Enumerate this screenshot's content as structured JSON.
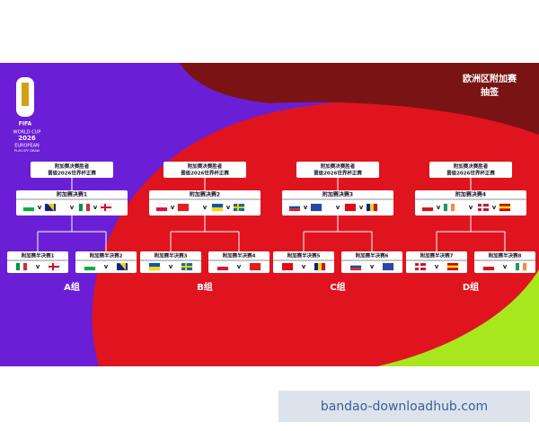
{
  "title": [
    "欧洲区附加赛",
    "抽签"
  ],
  "logo": {
    "brand": "FIFA",
    "lines": [
      "WORLD CUP",
      "2026",
      "EUROPEAN",
      "PLAY-OFF DRAW"
    ]
  },
  "versus": "v",
  "groups": [
    {
      "winner": [
        "附加赛决赛胜者",
        "晋级2026世界杯正赛"
      ],
      "final": "附加赛决赛1",
      "semis": [
        "附加赛半决赛1",
        "附加赛半决赛2"
      ],
      "label": "A组"
    },
    {
      "winner": [
        "附加赛决赛胜者",
        "晋级2026世界杯正赛"
      ],
      "final": "附加赛决赛2",
      "semis": [
        "附加赛半决赛3",
        "附加赛半决赛4"
      ],
      "label": "B组"
    },
    {
      "winner": [
        "附加赛决赛胜者",
        "晋级2026世界杯正赛"
      ],
      "final": "附加赛决赛3",
      "semis": [
        "附加赛半决赛5",
        "附加赛半决赛6"
      ],
      "label": "C组"
    },
    {
      "winner": [
        "附加赛决赛胜者",
        "晋级2026世界杯正赛"
      ],
      "final": "附加赛决赛4",
      "semis": [
        "附加赛半决赛7",
        "附加赛半决赛8"
      ],
      "label": "D组"
    }
  ],
  "watermark": "bandao-downloadhub.com"
}
